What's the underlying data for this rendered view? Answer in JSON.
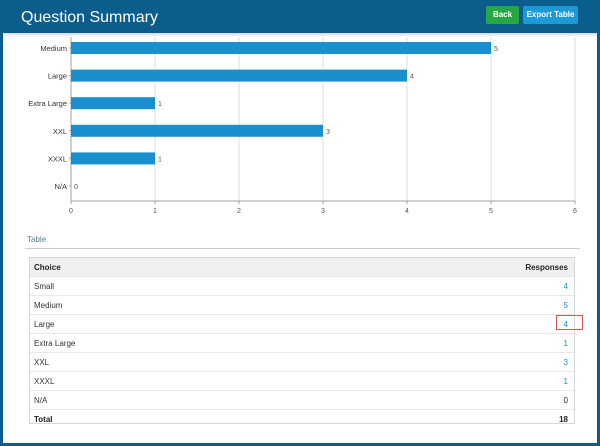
{
  "header": {
    "title": "Question Summary",
    "back_label": "Back",
    "export_label": "Export Table"
  },
  "chart_data": {
    "type": "bar",
    "orientation": "horizontal",
    "categories": [
      "Medium",
      "Large",
      "Extra Large",
      "XXL",
      "XXXL",
      "N/A"
    ],
    "values": [
      5,
      4,
      1,
      3,
      1,
      0
    ],
    "xlim": [
      0,
      6
    ],
    "x_ticks": [
      "0",
      "1",
      "2",
      "3",
      "4",
      "5",
      "6"
    ],
    "grid": true,
    "bar_color": "#1a8fd0"
  },
  "table": {
    "section_title": "Table",
    "headers": {
      "choice": "Choice",
      "responses": "Responses"
    },
    "rows": [
      {
        "choice": "Small",
        "responses": "4"
      },
      {
        "choice": "Medium",
        "responses": "5"
      },
      {
        "choice": "Large",
        "responses": "4"
      },
      {
        "choice": "Extra Large",
        "responses": "1"
      },
      {
        "choice": "XXL",
        "responses": "3"
      },
      {
        "choice": "XXXL",
        "responses": "1"
      },
      {
        "choice": "N/A",
        "responses": "0"
      }
    ],
    "total": {
      "label": "Total",
      "value": "18"
    }
  },
  "colors": {
    "header_bg": "#0b5e8c",
    "back_button": "#28a745",
    "export_button": "#1a9ad6",
    "link": "#1a8fd0",
    "highlight_border": "#d9534f"
  }
}
